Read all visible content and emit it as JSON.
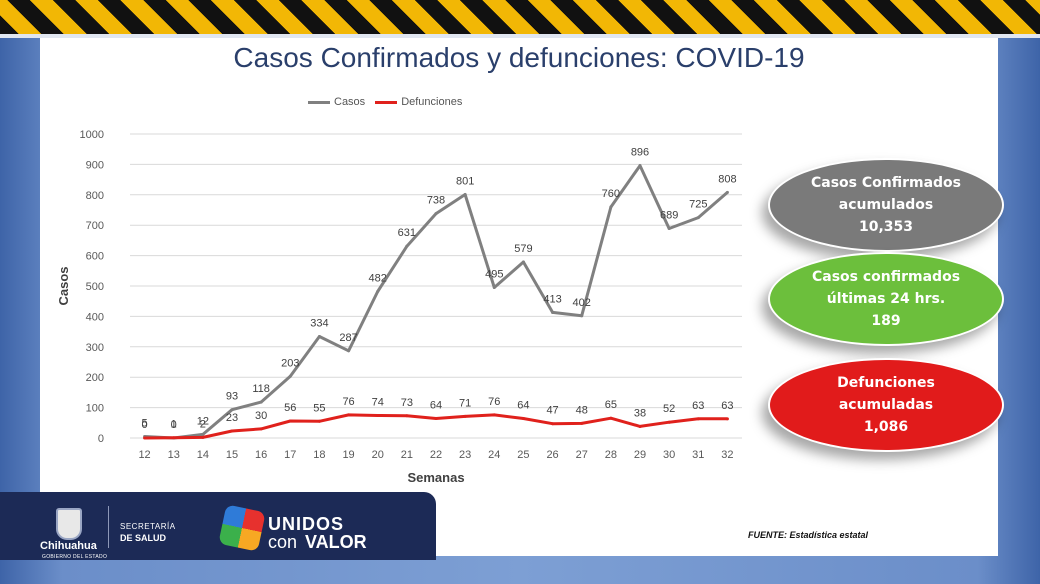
{
  "title": "Casos Confirmados y defunciones: COVID-19",
  "legend": [
    {
      "label": "Casos",
      "color": "#808080"
    },
    {
      "label": "Defunciones",
      "color": "#e0211c"
    }
  ],
  "chart_data": {
    "type": "line",
    "title": "Casos Confirmados y defunciones: COVID-19",
    "xlabel": "Semanas",
    "ylabel": "Casos",
    "ylim": [
      0,
      1000
    ],
    "yticks": [
      0,
      100,
      200,
      300,
      400,
      500,
      600,
      700,
      800,
      900,
      1000
    ],
    "grid": true,
    "legend_position": "top",
    "x": [
      12,
      13,
      14,
      15,
      16,
      17,
      18,
      19,
      20,
      21,
      22,
      23,
      24,
      25,
      26,
      27,
      28,
      29,
      30,
      31,
      32
    ],
    "series": [
      {
        "name": "Casos",
        "color": "#808080",
        "values": [
          5,
          0,
          12,
          93,
          118,
          203,
          334,
          287,
          482,
          631,
          738,
          801,
          495,
          579,
          413,
          402,
          760,
          896,
          689,
          725,
          808
        ]
      },
      {
        "name": "Defunciones",
        "color": "#e0211c",
        "values": [
          0,
          1,
          2,
          23,
          30,
          56,
          55,
          76,
          74,
          73,
          64,
          71,
          76,
          64,
          47,
          48,
          65,
          38,
          52,
          63,
          63
        ]
      }
    ]
  },
  "callouts": [
    {
      "line1": "Casos Confirmados",
      "line2": "acumulados",
      "value": "10,353",
      "color": "#7a7a7a"
    },
    {
      "line1": "Casos confirmados",
      "line2": "últimas 24 hrs.",
      "value": "189",
      "color": "#6cbf3c"
    },
    {
      "line1": "Defunciones",
      "line2": "acumuladas",
      "value": "1,086",
      "color": "#e11b1b"
    }
  ],
  "footer": {
    "state": "Chihuahua",
    "government": "GOBIERNO DEL ESTADO",
    "secretaria": "SECRETARÍA",
    "salud": "DE SALUD",
    "brand_top": "UNIDOS",
    "brand_con": "con",
    "brand_valor": "VALOR"
  },
  "source": "FUENTE: Estadística estatal"
}
